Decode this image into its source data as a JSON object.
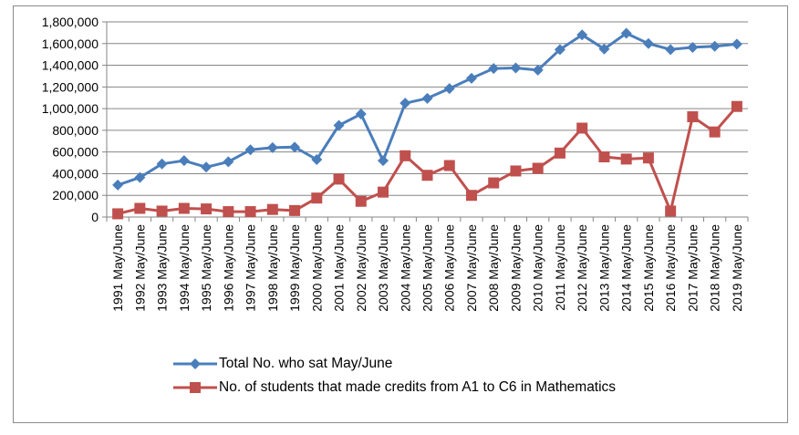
{
  "chart_data": {
    "type": "line",
    "categories": [
      "1991 May/June",
      "1992 May/June",
      "1993 May/June",
      "1994 May/June",
      "1995 May/June",
      "1996 May/June",
      "1997 May/June",
      "1998 May/June",
      "1999 May/June",
      "2000 May/June",
      "2001 May/June",
      "2002 May/June",
      "2003 May/June",
      "2004 May/June",
      "2005 May/June",
      "2006 May/June",
      "2007 May/June",
      "2008 May/June",
      "2009 May/June",
      "2010 May/June",
      "2011 May/June",
      "2012 May/June",
      "2013 May/June",
      "2014 May/June",
      "2015 May/June",
      "2016 May/June",
      "2017 May/June",
      "2018 May/June",
      "2019 May/June"
    ],
    "series": [
      {
        "name": "Total No. who sat May/June",
        "color": "#4a7ebb",
        "marker": "diamond",
        "values": [
          295000,
          365000,
          490000,
          520000,
          460000,
          510000,
          620000,
          640000,
          645000,
          530000,
          845000,
          950000,
          520000,
          1050000,
          1095000,
          1185000,
          1280000,
          1370000,
          1375000,
          1355000,
          1545000,
          1680000,
          1550000,
          1695000,
          1600000,
          1545000,
          1565000,
          1575000,
          1595000
        ]
      },
      {
        "name": "No. of students that made credits from A1 to C6 in Mathematics",
        "color": "#c0504d",
        "marker": "square",
        "values": [
          30000,
          80000,
          55000,
          80000,
          75000,
          50000,
          50000,
          70000,
          60000,
          175000,
          350000,
          145000,
          230000,
          565000,
          385000,
          475000,
          200000,
          315000,
          425000,
          450000,
          590000,
          820000,
          555000,
          535000,
          545000,
          55000,
          925000,
          785000,
          1020000
        ]
      }
    ],
    "title": "",
    "xlabel": "",
    "ylabel": "",
    "ylim": [
      0,
      1800000
    ],
    "yticks": [
      "0",
      "200,000",
      "400,000",
      "600,000",
      "800,000",
      "1,000,000",
      "1,200,000",
      "1,400,000",
      "1,600,000",
      "1,800,000"
    ],
    "grid": "horizontal",
    "legend_position": "bottom"
  }
}
